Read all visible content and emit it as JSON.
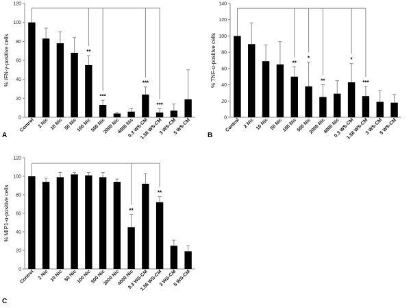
{
  "chart_data": [
    {
      "panel_letter": "A",
      "type": "bar",
      "title": "",
      "xlabel": "",
      "ylabel": "% IFN-γ-positive cells",
      "ylim": [
        0,
        120
      ],
      "yticks": [
        0,
        20,
        40,
        60,
        80,
        100,
        120
      ],
      "categories": [
        "Control",
        "2 Nic",
        "10 Nic",
        "50 Nic",
        "100 Nic",
        "500 Nic",
        "2000 Nic",
        "4000 Nic",
        "0.3 WS-CM",
        "1.56 WS-CM",
        "3 WS-CM",
        "5 WS-CM"
      ],
      "values": [
        100,
        83,
        78,
        68,
        55,
        13,
        4,
        6,
        24,
        5,
        7,
        19
      ],
      "errors": [
        0,
        11,
        12,
        16,
        10,
        5,
        1,
        3,
        8,
        4,
        7,
        31
      ],
      "significance": [
        {
          "category": "100 Nic",
          "label": "**"
        },
        {
          "category": "500 Nic",
          "label": "***"
        },
        {
          "category": "0.3 WS-CM",
          "label": "***"
        },
        {
          "category": "1.56 WS-CM",
          "label": "***"
        }
      ],
      "bracket_level": 115,
      "bracket_targets": [
        "100 Nic",
        "500 Nic",
        "0.3 WS-CM",
        "1.56 WS-CM"
      ]
    },
    {
      "panel_letter": "B",
      "type": "bar",
      "title": "",
      "xlabel": "",
      "ylabel": "% TNF-α-positive cells",
      "ylim": [
        0,
        140
      ],
      "yticks": [
        0,
        20,
        40,
        60,
        80,
        100,
        120,
        140
      ],
      "categories": [
        "Control",
        "2 Nic",
        "10 Nic",
        "50 Nic",
        "100 Nic",
        "500 Nic",
        "2000 Nic",
        "4000 Nic",
        "0.3 WS-CM",
        "1.56 WS-CM",
        "3 WS-CM",
        "5 WS-CM"
      ],
      "values": [
        100,
        90,
        69,
        65,
        50,
        38,
        25,
        29,
        43,
        26,
        19,
        18
      ],
      "errors": [
        0,
        26,
        20,
        28,
        12,
        30,
        15,
        16,
        23,
        12,
        14,
        10
      ],
      "significance": [
        {
          "category": "100 Nic",
          "label": "**"
        },
        {
          "category": "500 Nic",
          "label": "*"
        },
        {
          "category": "2000 Nic",
          "label": "**"
        },
        {
          "category": "0.3 WS-CM",
          "label": "*"
        },
        {
          "category": "1.56 WS-CM",
          "label": "***"
        }
      ],
      "bracket_level": 134,
      "bracket_targets": [
        "100 Nic",
        "500 Nic",
        "2000 Nic",
        "0.3 WS-CM",
        "1.56 WS-CM"
      ]
    },
    {
      "panel_letter": "C",
      "type": "bar",
      "title": "",
      "xlabel": "",
      "ylabel": "% MIP1-α-positive cells",
      "ylim": [
        0,
        120
      ],
      "yticks": [
        0,
        20,
        40,
        60,
        80,
        100,
        120
      ],
      "categories": [
        "Control",
        "2 Nic",
        "10 Nic",
        "50 Nic",
        "100 Nic",
        "500 Nic",
        "2000 Nic",
        "4000 Nic",
        "0.3 WS-CM",
        "1.56 WS-CM",
        "3 WS-CM",
        "5 WS-CM"
      ],
      "values": [
        100,
        94,
        99,
        102,
        101,
        99,
        94,
        45,
        92,
        72,
        25,
        19
      ],
      "errors": [
        0,
        4,
        5,
        2,
        3,
        5,
        3,
        14,
        11,
        6,
        6,
        6
      ],
      "significance": [
        {
          "category": "4000 Nic",
          "label": "**"
        },
        {
          "category": "1.56 WS-CM",
          "label": "**"
        }
      ],
      "bracket_level": 114,
      "bracket_targets": [
        "4000 Nic",
        "1.56 WS-CM"
      ]
    }
  ],
  "colors": {
    "bar": "#000000",
    "axis": "#888888",
    "bracket": "#8a8a8a",
    "error": "#888888",
    "text": "#111111"
  }
}
